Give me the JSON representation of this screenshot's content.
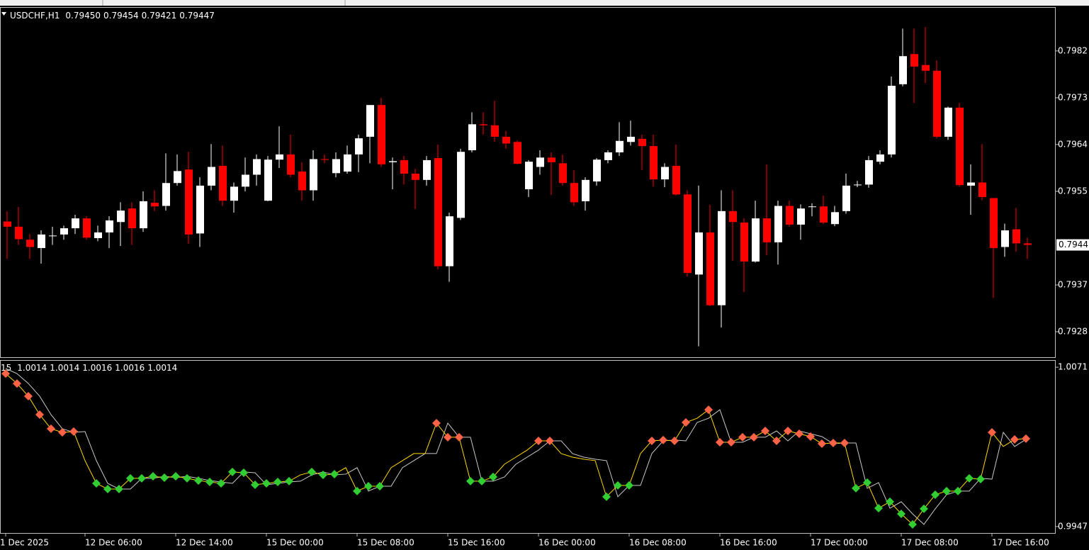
{
  "chart_data": [
    {
      "type": "candlestick",
      "symbol": "USDCHF,H1",
      "header_values": [
        "0.79450",
        "0.79454",
        "0.79421",
        "0.79447"
      ],
      "current_price_label": "0.7944",
      "up_color": "#ffffff",
      "down_color": "#ff0000",
      "categories": [
        "1 Dec 2025",
        null,
        null,
        null,
        null,
        null,
        null,
        "12 Dec 06:00",
        null,
        null,
        null,
        null,
        null,
        null,
        null,
        "12 Dec 14:00",
        null,
        null,
        null,
        null,
        null,
        null,
        null,
        "15 Dec 00:00",
        null,
        null,
        null,
        null,
        null,
        null,
        null,
        "15 Dec 08:00",
        null,
        null,
        null,
        null,
        null,
        null,
        null,
        "15 Dec 16:00",
        null,
        null,
        null,
        null,
        null,
        null,
        null,
        "16 Dec 00:00",
        null,
        null,
        null,
        null,
        null,
        null,
        null,
        "16 Dec 08:00",
        null,
        null,
        null,
        null,
        null,
        null,
        null,
        "16 Dec 16:00",
        null,
        null,
        null,
        null,
        null,
        null,
        null,
        "17 Dec 00:00",
        null,
        null,
        null,
        null,
        null,
        null,
        null,
        "17 Dec 08:00",
        null,
        null,
        null,
        null,
        null,
        null,
        null,
        "17 Dec 16:00",
        null,
        null,
        null
      ],
      "open": [
        0.79492,
        0.79482,
        0.79457,
        0.79441,
        0.79464,
        0.79467,
        0.79479,
        0.79498,
        0.7946,
        0.79471,
        0.79491,
        0.79517,
        0.79479,
        0.79528,
        0.79522,
        0.79566,
        0.79592,
        0.79469,
        0.79561,
        0.79599,
        0.79532,
        0.79559,
        0.79582,
        0.79532,
        0.79611,
        0.79621,
        0.79588,
        0.79552,
        0.79612,
        0.79585,
        0.79588,
        0.79621,
        0.79655,
        0.79716,
        0.79606,
        0.7961,
        0.79584,
        0.79572,
        0.79614,
        0.79406,
        0.79499,
        0.79629,
        0.79679,
        0.79677,
        0.79655,
        0.79645,
        0.79554,
        0.79597,
        0.79615,
        0.79604,
        0.79566,
        0.79531,
        0.79569,
        0.7961,
        0.79625,
        0.79645,
        0.79651,
        0.79637,
        0.79573,
        0.79599,
        0.79544,
        0.7939,
        0.79471,
        0.79331,
        0.79512,
        0.7949,
        0.79415,
        0.79498,
        0.79452,
        0.79522,
        0.79486,
        0.7952,
        0.79521,
        0.79487,
        0.79512,
        0.79562,
        0.79563,
        0.79607,
        0.79621,
        0.79756,
        0.79814,
        0.79793,
        0.79782,
        0.79655,
        0.79711,
        0.79561,
        0.79567,
        0.79537,
        0.79443,
        0.79477,
        0.7945
      ],
      "high": [
        0.79512,
        0.7952,
        0.79468,
        0.79475,
        0.79482,
        0.79484,
        0.79505,
        0.79502,
        0.79484,
        0.79502,
        0.79529,
        0.79529,
        0.7955,
        0.79552,
        0.79623,
        0.79621,
        0.79626,
        0.79577,
        0.79641,
        0.79638,
        0.79567,
        0.79615,
        0.79621,
        0.79618,
        0.79675,
        0.79659,
        0.79606,
        0.79629,
        0.79621,
        0.79625,
        0.79638,
        0.79659,
        0.79716,
        0.7973,
        0.79615,
        0.79618,
        0.79593,
        0.79618,
        0.7964,
        0.79509,
        0.79632,
        0.79702,
        0.79702,
        0.79724,
        0.79666,
        0.79648,
        0.7961,
        0.79629,
        0.79625,
        0.79621,
        0.79591,
        0.79577,
        0.79614,
        0.79629,
        0.79683,
        0.79686,
        0.79659,
        0.79659,
        0.79604,
        0.7964,
        0.79552,
        0.79561,
        0.79524,
        0.79552,
        0.79552,
        0.79498,
        0.79532,
        0.79602,
        0.79532,
        0.79532,
        0.79525,
        0.79527,
        0.79542,
        0.79522,
        0.79584,
        0.7957,
        0.79618,
        0.79629,
        0.79771,
        0.79863,
        0.79863,
        0.79866,
        0.79802,
        0.79713,
        0.7972,
        0.79602,
        0.79641,
        0.79537,
        0.79488,
        0.79518,
        0.79461
      ],
      "low": [
        0.7942,
        0.79447,
        0.7942,
        0.79411,
        0.79447,
        0.79457,
        0.79468,
        0.79457,
        0.79454,
        0.79441,
        0.79445,
        0.79447,
        0.79472,
        0.79512,
        0.79513,
        0.79561,
        0.79449,
        0.79443,
        0.79552,
        0.79522,
        0.79509,
        0.7955,
        0.79561,
        0.79531,
        0.79595,
        0.79577,
        0.79532,
        0.79532,
        0.79604,
        0.79577,
        0.79584,
        0.79587,
        0.79604,
        0.79597,
        0.79554,
        0.79563,
        0.79516,
        0.79561,
        0.794,
        0.79376,
        0.79495,
        0.79625,
        0.79659,
        0.79645,
        0.79632,
        0.79602,
        0.79539,
        0.79582,
        0.79543,
        0.79561,
        0.79522,
        0.79513,
        0.79561,
        0.79604,
        0.79618,
        0.79638,
        0.79591,
        0.79559,
        0.79558,
        0.79542,
        0.79386,
        0.79252,
        0.79329,
        0.79288,
        0.79416,
        0.79356,
        0.79413,
        0.79427,
        0.79409,
        0.79482,
        0.79457,
        0.79502,
        0.79487,
        0.79483,
        0.79507,
        0.79558,
        0.79557,
        0.79602,
        0.79615,
        0.79752,
        0.7972,
        0.79758,
        0.79652,
        0.79649,
        0.79559,
        0.79505,
        0.79533,
        0.79345,
        0.79424,
        0.79434,
        0.7942
      ],
      "close": [
        0.79482,
        0.79458,
        0.79443,
        0.79467,
        0.79465,
        0.79479,
        0.79498,
        0.79461,
        0.79471,
        0.79494,
        0.79513,
        0.79479,
        0.79531,
        0.79521,
        0.79566,
        0.79589,
        0.79467,
        0.79561,
        0.79597,
        0.79532,
        0.79559,
        0.79582,
        0.79612,
        0.79611,
        0.79621,
        0.79582,
        0.79552,
        0.79612,
        0.79611,
        0.79612,
        0.79621,
        0.79652,
        0.79716,
        0.79602,
        0.79608,
        0.79584,
        0.79572,
        0.7961,
        0.79406,
        0.79502,
        0.79626,
        0.79679,
        0.79677,
        0.79655,
        0.79642,
        0.79603,
        0.79607,
        0.79615,
        0.79606,
        0.79566,
        0.79529,
        0.79572,
        0.79611,
        0.79625,
        0.79647,
        0.79655,
        0.79637,
        0.79573,
        0.79597,
        0.79544,
        0.79393,
        0.79471,
        0.79331,
        0.79512,
        0.79491,
        0.79415,
        0.79498,
        0.79452,
        0.79522,
        0.79486,
        0.79517,
        0.79521,
        0.7949,
        0.7951,
        0.79561,
        0.79563,
        0.7961,
        0.79621,
        0.79753,
        0.7981,
        0.7979,
        0.79782,
        0.79655,
        0.79711,
        0.79562,
        0.79567,
        0.79539,
        0.79441,
        0.79475,
        0.7945,
        0.79447
      ],
      "ylim": [
        0.79231,
        0.79903
      ],
      "yticks": [
        0.7982,
        0.7973,
        0.7964,
        0.7955,
        0.7937,
        0.7928
      ]
    },
    {
      "type": "line",
      "title": "15",
      "header_values": [
        "1.0014",
        "1.0014",
        "1.0016",
        "1.0016",
        "1.0014"
      ],
      "ylim": [
        0.9942,
        1.0076
      ],
      "yticks": [
        1.0071,
        0.9947
      ],
      "series": [
        {
          "color": "#c8c8c8",
          "values": [
            1.007,
            1.0066,
            1.00583,
            1.00484,
            1.00341,
            1.00231,
            1.00203,
            1.00209,
            0.99983,
            0.99806,
            0.99762,
            0.99762,
            0.99845,
            0.99845,
            0.99861,
            0.9985,
            0.99861,
            0.99845,
            0.99828,
            0.99817,
            0.99806,
            0.99895,
            0.99889,
            0.99795,
            0.99806,
            0.99817,
            0.99823,
            0.99872,
            0.99895,
            0.99872,
            0.99878,
            0.99928,
            0.99746,
            0.99784,
            0.99784,
            0.99928,
            0.99983,
            1.00038,
            1.00038,
            1.00275,
            1.00165,
            1.00165,
            0.99823,
            0.99823,
            0.99856,
            0.99955,
            1.0001,
            1.00065,
            1.00137,
            1.00137,
            1.00038,
            1.0001,
            0.99994,
            0.99983,
            0.99702,
            0.9979,
            0.9979,
            1.00038,
            1.00137,
            1.00143,
            1.00137,
            1.0028,
            1.00313,
            1.00379,
            1.00126,
            1.00126,
            1.00165,
            1.00165,
            1.00214,
            1.00137,
            1.00214,
            1.00192,
            1.0017,
            1.00115,
            1.0012,
            1.0012,
            0.99768,
            0.99812,
            0.99613,
            0.99663,
            0.99569,
            0.99487,
            0.99608,
            0.99718,
            0.99746,
            0.99746,
            0.99845,
            0.99839,
            1.00203,
            1.00093,
            1.00148
          ]
        },
        {
          "color": "#ffd700",
          "values": [
            1.0066,
            1.00583,
            1.00484,
            1.00341,
            1.00231,
            1.00203,
            1.00209,
            0.99983,
            0.99806,
            0.99762,
            0.99762,
            0.99845,
            0.99845,
            0.99861,
            0.9985,
            0.99861,
            0.99845,
            0.99828,
            0.99817,
            0.99806,
            0.99895,
            0.99889,
            0.99795,
            0.99806,
            0.99817,
            0.99823,
            0.99872,
            0.99895,
            0.99872,
            0.99878,
            0.99928,
            0.99746,
            0.99784,
            0.99784,
            0.99928,
            0.99983,
            1.00038,
            1.00038,
            1.00275,
            1.00165,
            1.00165,
            0.99823,
            0.99823,
            0.99856,
            0.99955,
            1.0001,
            1.00065,
            1.00137,
            1.00137,
            1.00038,
            1.0001,
            0.99994,
            0.99983,
            0.99702,
            0.9979,
            0.9979,
            1.00038,
            1.00137,
            1.00143,
            1.00137,
            1.0028,
            1.00313,
            1.00379,
            1.00126,
            1.00126,
            1.00165,
            1.00165,
            1.00214,
            1.00137,
            1.00214,
            1.00192,
            1.0017,
            1.00115,
            1.0012,
            1.0012,
            0.99768,
            0.99812,
            0.99613,
            0.99663,
            0.99569,
            0.99487,
            0.99608,
            0.99718,
            0.99746,
            0.99746,
            0.99845,
            0.99839,
            1.00203,
            1.00093,
            1.00148,
            1.00154
          ]
        },
        {
          "color": "#ff6347",
          "marker": "diamond",
          "values": [
            1.0066,
            1.00583,
            1.00484,
            1.00341,
            1.00231,
            1.00203,
            1.00209,
            null,
            null,
            null,
            null,
            null,
            null,
            null,
            null,
            null,
            null,
            null,
            null,
            null,
            null,
            null,
            null,
            null,
            null,
            null,
            null,
            null,
            null,
            null,
            null,
            null,
            null,
            null,
            null,
            null,
            null,
            null,
            1.00275,
            1.00165,
            1.00165,
            null,
            null,
            null,
            null,
            null,
            null,
            1.00137,
            1.00137,
            null,
            null,
            null,
            null,
            null,
            null,
            null,
            null,
            1.00137,
            1.00143,
            1.00137,
            1.0028,
            null,
            1.00379,
            1.00126,
            1.00126,
            1.00165,
            1.00165,
            1.00214,
            1.00137,
            1.00214,
            1.00192,
            1.0017,
            1.00115,
            1.0012,
            1.0012,
            null,
            null,
            null,
            null,
            null,
            null,
            null,
            null,
            null,
            null,
            null,
            null,
            1.00203,
            null,
            1.00148,
            1.00154
          ]
        },
        {
          "color": "#32cd32",
          "marker": "diamond",
          "values": [
            null,
            null,
            null,
            null,
            null,
            null,
            null,
            null,
            0.99806,
            0.99762,
            0.99762,
            0.99845,
            0.99845,
            0.99861,
            0.9985,
            0.99861,
            0.99845,
            0.99828,
            0.99817,
            0.99806,
            0.99895,
            0.99889,
            0.99795,
            0.99806,
            0.99817,
            0.99823,
            null,
            0.99895,
            0.99872,
            0.99878,
            null,
            0.99746,
            0.99784,
            0.99784,
            null,
            null,
            null,
            null,
            null,
            null,
            null,
            0.99823,
            0.99823,
            0.99856,
            null,
            null,
            null,
            null,
            null,
            null,
            null,
            null,
            null,
            0.99702,
            0.9979,
            0.9979,
            null,
            null,
            null,
            null,
            null,
            null,
            null,
            null,
            null,
            null,
            null,
            null,
            null,
            null,
            null,
            null,
            null,
            null,
            null,
            0.99768,
            0.99812,
            0.99613,
            0.99663,
            0.99569,
            0.99487,
            0.99608,
            0.99718,
            0.99746,
            0.99746,
            0.99845,
            0.99839,
            null,
            null,
            null,
            null
          ]
        }
      ]
    }
  ]
}
